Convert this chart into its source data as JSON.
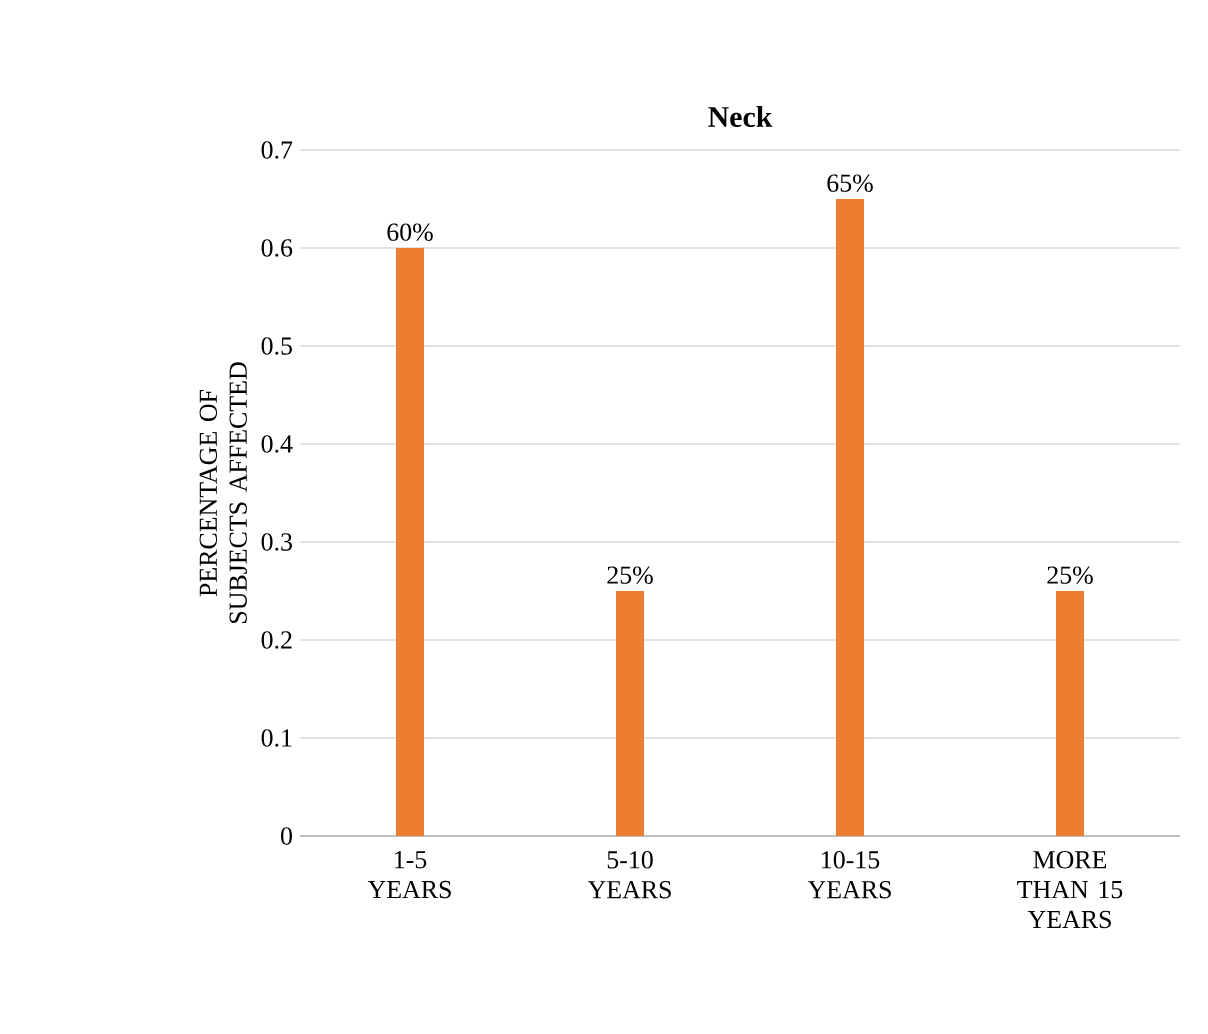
{
  "chart_data": {
    "type": "bar",
    "title": "Neck",
    "ylabel": "PERCENTAGE OF SUBJECTS AFFECTED",
    "categories": [
      "1-5 YEARS",
      "5-10 YEARS",
      "10-15 YEARS",
      "MORE THAN 15 YEARS"
    ],
    "values": [
      0.6,
      0.25,
      0.65,
      0.25
    ],
    "value_labels": [
      "60%",
      "25%",
      "65%",
      "25%"
    ],
    "color": "#ed7d31",
    "ylim": [
      0,
      0.7
    ],
    "yticks": [
      0,
      0.1,
      0.2,
      0.3,
      0.4,
      0.5,
      0.6,
      0.7
    ],
    "grid": "y"
  }
}
